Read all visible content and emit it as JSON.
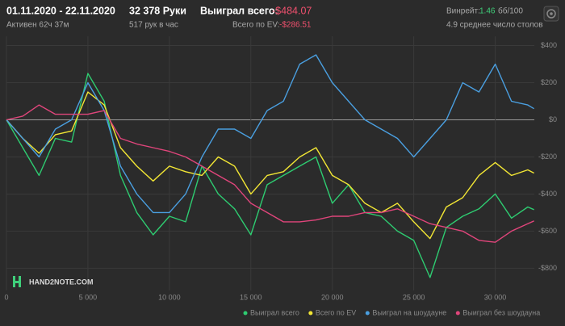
{
  "header": {
    "date_range": "01.11.2020 - 22.11.2020",
    "active": "Активен 62ч 37м",
    "hands": "32 378 Руки",
    "hands_per_hour": "517 рук в час",
    "won_label": "Выиграл всего:",
    "won_value": "-$484.07",
    "ev_label": "Всего по EV:",
    "ev_value": "-$286.51",
    "winrate_label": "Винрейт:",
    "winrate_value": "1.46",
    "winrate_unit": "бб/100",
    "tables": "4.9 среднее число столов"
  },
  "chart_data": {
    "type": "line",
    "watermark": "HAND2NOTE.COM",
    "x": [
      0,
      1000,
      2000,
      3000,
      4000,
      5000,
      6000,
      7000,
      8000,
      9000,
      10000,
      11000,
      12000,
      13000,
      14000,
      15000,
      16000,
      17000,
      18000,
      19000,
      20000,
      21000,
      22000,
      23000,
      24000,
      25000,
      26000,
      27000,
      28000,
      29000,
      30000,
      31000,
      32000,
      32378
    ],
    "series": [
      {
        "name": "Выиграл всего",
        "color": "#2ecc71",
        "values": [
          0,
          -150,
          -300,
          -100,
          -120,
          250,
          100,
          -300,
          -500,
          -620,
          -520,
          -550,
          -250,
          -400,
          -480,
          -620,
          -350,
          -300,
          -250,
          -200,
          -450,
          -350,
          -500,
          -520,
          -600,
          -650,
          -850,
          -580,
          -520,
          -480,
          -400,
          -530,
          -470,
          -484
        ]
      },
      {
        "name": "Всего по EV",
        "color": "#f2e634",
        "values": [
          0,
          -100,
          -180,
          -80,
          -60,
          150,
          80,
          -150,
          -250,
          -330,
          -250,
          -280,
          -300,
          -200,
          -250,
          -400,
          -300,
          -280,
          -200,
          -150,
          -300,
          -350,
          -450,
          -500,
          -450,
          -550,
          -640,
          -470,
          -420,
          -300,
          -230,
          -300,
          -270,
          -287
        ]
      },
      {
        "name": "Выиграл на шоудауне",
        "color": "#4a9fe0",
        "values": [
          0,
          -100,
          -200,
          -50,
          0,
          200,
          50,
          -250,
          -400,
          -500,
          -500,
          -400,
          -200,
          -50,
          -50,
          -100,
          50,
          100,
          300,
          350,
          200,
          100,
          0,
          -50,
          -100,
          -200,
          -100,
          0,
          200,
          150,
          300,
          100,
          80,
          60
        ]
      },
      {
        "name": "Выиграл без шоудауна",
        "color": "#e0457b",
        "values": [
          0,
          20,
          80,
          30,
          30,
          30,
          50,
          -100,
          -130,
          -150,
          -170,
          -200,
          -250,
          -300,
          -350,
          -450,
          -500,
          -550,
          -550,
          -540,
          -520,
          -520,
          -500,
          -500,
          -480,
          -520,
          -560,
          -580,
          -600,
          -650,
          -660,
          -600,
          -560,
          -545
        ]
      }
    ],
    "xlim": [
      0,
      32400
    ],
    "ylim": [
      -920,
      450
    ],
    "xticks": [
      0,
      {
        "value": 5000,
        "label": "5 000"
      },
      {
        "value": 10000,
        "label": "10 000"
      },
      {
        "value": 15000,
        "label": "15 000"
      },
      {
        "value": 20000,
        "label": "20 000"
      },
      {
        "value": 25000,
        "label": "25 000"
      },
      {
        "value": 30000,
        "label": "30 000"
      }
    ],
    "yticks": [
      {
        "value": 400,
        "label": "$400"
      },
      {
        "value": 200,
        "label": "$200"
      },
      {
        "value": 0,
        "label": "$0"
      },
      {
        "value": -200,
        "label": "-$200"
      },
      {
        "value": -400,
        "label": "-$400"
      },
      {
        "value": -600,
        "label": "-$600"
      },
      {
        "value": -800,
        "label": "-$800"
      }
    ],
    "grid": true
  }
}
